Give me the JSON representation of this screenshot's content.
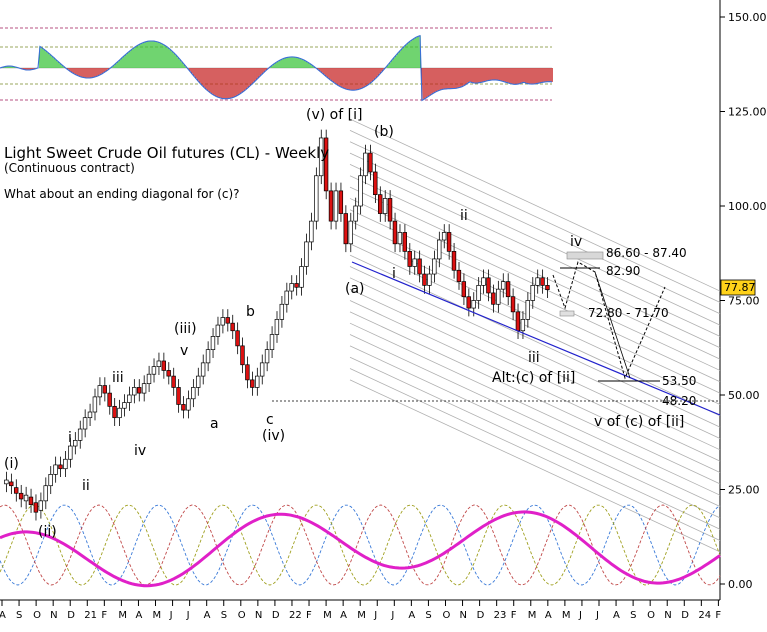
{
  "chart_data": {
    "type": "candlestick",
    "title": "Light Sweet Crude Oil futures (CL) - Weekly",
    "subtitle": "(Continuous contract)",
    "annotation": "What about an ending diagonal for (c)?",
    "ylim": [
      0,
      150
    ],
    "y_ticks": [
      "150.00",
      "125.00",
      "100.00",
      "75.00",
      "50.00",
      "25.00",
      "0.00"
    ],
    "last_price": "77.87",
    "x_ticks": [
      "A",
      "S",
      "O",
      "N",
      "D",
      "21",
      "F",
      "M",
      "A",
      "M",
      "J",
      "J",
      "A",
      "S",
      "O",
      "N",
      "D",
      "22",
      "F",
      "M",
      "A",
      "M",
      "J",
      "J",
      "A",
      "S",
      "O",
      "N",
      "D",
      "23",
      "F",
      "M",
      "A",
      "M",
      "J",
      "J",
      "A",
      "S",
      "O",
      "N",
      "D",
      "24",
      "F"
    ],
    "price_path": [
      [
        0,
        26
      ],
      [
        3,
        28
      ],
      [
        6,
        20
      ],
      [
        9,
        18
      ],
      [
        12,
        30
      ],
      [
        15,
        38
      ],
      [
        18,
        41
      ],
      [
        21,
        50
      ],
      [
        24,
        57
      ],
      [
        27,
        56
      ],
      [
        30,
        62
      ],
      [
        33,
        60
      ],
      [
        36,
        63
      ],
      [
        39,
        65
      ],
      [
        42,
        69
      ],
      [
        45,
        75
      ],
      [
        48,
        72
      ],
      [
        51,
        66
      ],
      [
        54,
        68
      ],
      [
        57,
        66
      ],
      [
        60,
        69
      ],
      [
        63,
        73
      ],
      [
        66,
        84
      ],
      [
        69,
        83
      ],
      [
        72,
        78
      ],
      [
        75,
        76
      ],
      [
        78,
        82
      ],
      [
        81,
        86
      ],
      [
        84,
        90
      ],
      [
        87,
        95
      ],
      [
        90,
        98
      ],
      [
        93,
        102
      ],
      [
        96,
        110
      ],
      [
        99,
        115
      ],
      [
        102,
        108
      ],
      [
        105,
        102
      ],
      [
        108,
        96
      ],
      [
        111,
        88
      ],
      [
        114,
        80
      ],
      [
        117,
        75
      ],
      [
        120,
        72
      ],
      [
        123,
        74
      ],
      [
        126,
        77
      ],
      [
        129,
        80
      ],
      [
        132,
        84
      ],
      [
        135,
        86
      ],
      [
        138,
        90
      ],
      [
        141,
        92
      ],
      [
        144,
        89
      ],
      [
        147,
        83
      ],
      [
        150,
        80
      ],
      [
        153,
        82
      ],
      [
        156,
        78
      ],
      [
        159,
        72
      ],
      [
        162,
        70
      ],
      [
        165,
        72
      ],
      [
        168,
        75
      ],
      [
        171,
        77
      ],
      [
        174,
        73
      ],
      [
        177,
        71
      ],
      [
        180,
        66
      ],
      [
        183,
        75
      ],
      [
        186,
        80
      ],
      [
        189,
        77
      ],
      [
        192,
        73
      ],
      [
        195,
        79
      ],
      [
        198,
        81
      ]
    ],
    "candle_values": [
      [
        26.5,
        27.5
      ],
      [
        27.0,
        26.0
      ],
      [
        25.5,
        24.0
      ],
      [
        24.0,
        22.5
      ],
      [
        22.0,
        23.5
      ],
      [
        23.0,
        21.0
      ],
      [
        21.5,
        19.0
      ],
      [
        19.5,
        22.0
      ],
      [
        22.0,
        26.0
      ],
      [
        26.0,
        29.0
      ],
      [
        29.0,
        31.5
      ],
      [
        31.5,
        30.5
      ],
      [
        30.5,
        33.0
      ],
      [
        33.0,
        36.5
      ],
      [
        36.5,
        38.0
      ],
      [
        38.0,
        41.0
      ],
      [
        41.0,
        44.0
      ],
      [
        44.0,
        45.5
      ],
      [
        45.5,
        49.5
      ],
      [
        49.5,
        52.5
      ],
      [
        52.5,
        50.5
      ],
      [
        50.5,
        47.0
      ],
      [
        47.0,
        44.0
      ],
      [
        44.0,
        46.5
      ],
      [
        46.5,
        48.0
      ],
      [
        48.0,
        50.0
      ],
      [
        50.0,
        52.0
      ],
      [
        52.0,
        50.5
      ],
      [
        50.5,
        53.0
      ],
      [
        53.0,
        55.5
      ],
      [
        55.5,
        57.5
      ],
      [
        57.5,
        59.0
      ],
      [
        59.0,
        56.5
      ],
      [
        56.5,
        55.0
      ],
      [
        55.0,
        52.0
      ],
      [
        52.0,
        47.5
      ],
      [
        47.5,
        46.0
      ],
      [
        46.0,
        49.0
      ],
      [
        49.0,
        52.0
      ],
      [
        52.0,
        55.0
      ],
      [
        55.0,
        58.5
      ],
      [
        58.5,
        62.0
      ],
      [
        62.0,
        65.5
      ],
      [
        65.5,
        68.5
      ],
      [
        68.5,
        70.5
      ],
      [
        70.5,
        69.0
      ],
      [
        69.0,
        67.0
      ],
      [
        67.0,
        63.0
      ],
      [
        63.0,
        58.0
      ],
      [
        58.0,
        54.0
      ],
      [
        54.0,
        52.0
      ],
      [
        52.0,
        55.0
      ],
      [
        55.0,
        58.5
      ],
      [
        58.5,
        62.0
      ],
      [
        62.0,
        66.0
      ],
      [
        66.0,
        70.0
      ],
      [
        70.0,
        74.0
      ],
      [
        74.0,
        77.5
      ],
      [
        77.5,
        79.5
      ],
      [
        79.5,
        78.5
      ],
      [
        78.5,
        84.0
      ],
      [
        84.0,
        90.5
      ],
      [
        90.5,
        96.0
      ],
      [
        96.0,
        108.0
      ],
      [
        108.0,
        118.0
      ],
      [
        118.0,
        104.0
      ],
      [
        104.0,
        96.0
      ],
      [
        96.0,
        104.0
      ],
      [
        104.0,
        98.0
      ],
      [
        98.0,
        90.0
      ],
      [
        90.0,
        96.0
      ],
      [
        96.0,
        100.0
      ],
      [
        100.0,
        108.0
      ],
      [
        108.0,
        114.0
      ],
      [
        114.0,
        109.0
      ],
      [
        109.0,
        103.0
      ],
      [
        103.0,
        98.0
      ],
      [
        98.0,
        102.0
      ],
      [
        102.0,
        96.0
      ],
      [
        96.0,
        90.0
      ],
      [
        90.0,
        93.0
      ],
      [
        93.0,
        88.0
      ],
      [
        88.0,
        84.0
      ],
      [
        84.0,
        86.0
      ],
      [
        86.0,
        82.0
      ],
      [
        82.0,
        79.0
      ],
      [
        79.0,
        82.0
      ],
      [
        82.0,
        86.0
      ],
      [
        86.0,
        91.0
      ],
      [
        91.0,
        93.0
      ],
      [
        93.0,
        88.0
      ],
      [
        88.0,
        83.0
      ],
      [
        83.0,
        80.0
      ],
      [
        80.0,
        76.0
      ],
      [
        76.0,
        73.0
      ],
      [
        73.0,
        75.0
      ],
      [
        75.0,
        79.0
      ],
      [
        79.0,
        81.0
      ],
      [
        81.0,
        77.0
      ],
      [
        77.0,
        74.0
      ],
      [
        74.0,
        78.0
      ],
      [
        78.0,
        80.0
      ],
      [
        80.0,
        76.0
      ],
      [
        76.0,
        72.0
      ],
      [
        72.0,
        67.0
      ],
      [
        67.0,
        70.0
      ],
      [
        70.0,
        75.0
      ],
      [
        75.0,
        79.0
      ],
      [
        79.0,
        81.0
      ],
      [
        81.0,
        79.0
      ],
      [
        79.0,
        77.87
      ]
    ],
    "wave_labels": [
      "(i)",
      "(ii)",
      "i",
      "ii",
      "iii",
      "iv",
      "(iii)",
      "v",
      "a",
      "b",
      "c",
      "(iv)",
      "(v) of [i]",
      "(a)",
      "(b)",
      "i",
      "ii",
      "iii",
      "iv",
      "Alt:(c) of [ii]",
      "v of (c) of [ii]"
    ],
    "levels": [
      {
        "label": "86.60 - 87.40",
        "value": 87.0
      },
      {
        "label": "82.90",
        "value": 82.9
      },
      {
        "label": "72.80 - 71.70",
        "value": 72.25
      },
      {
        "label": "53.50",
        "value": 53.5
      },
      {
        "label": "48.20",
        "value": 48.2
      }
    ],
    "colors": {
      "up": "#22b822",
      "down": "#dd1111",
      "trendline": "#2222cc",
      "channel": "#b0b0b0",
      "cycle_main": "#e020c8",
      "osc_up": "#33c133",
      "osc_down": "#c41b1b",
      "osc_line": "#3a6fd8",
      "dash_level": "#a01a5a"
    }
  }
}
